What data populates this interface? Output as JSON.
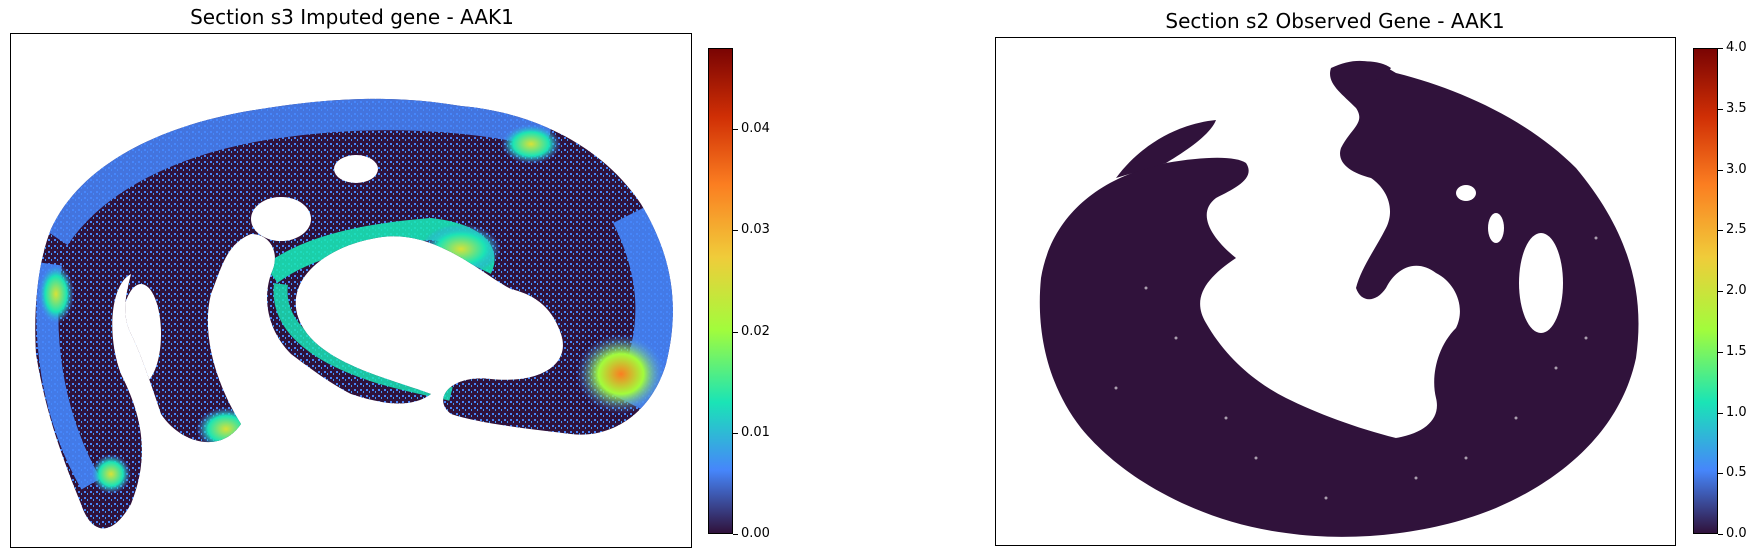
{
  "chart_data": [
    {
      "type": "heatmap",
      "title": "Section s3 Imputed gene - AAK1",
      "xlabel": "",
      "ylabel": "",
      "grid": false,
      "axes_ticks": false,
      "colormap": "turbo",
      "colorbar": {
        "vmin": 0.0,
        "vmax": 0.048,
        "ticks": [
          0.0,
          0.01,
          0.02,
          0.03,
          0.04
        ],
        "tick_labels": [
          "0.00",
          "0.01",
          "0.02",
          "0.03",
          "0.04"
        ]
      }
    },
    {
      "type": "heatmap",
      "title": "Section s2 Observed Gene - AAK1",
      "xlabel": "",
      "ylabel": "",
      "grid": false,
      "axes_ticks": false,
      "colormap": "turbo",
      "colorbar": {
        "vmin": 0.0,
        "vmax": 4.0,
        "ticks": [
          0.0,
          0.5,
          1.0,
          1.5,
          2.0,
          2.5,
          3.0,
          3.5,
          4.0
        ],
        "tick_labels": [
          "0.0",
          "0.5",
          "1.0",
          "1.5",
          "2.0",
          "2.5",
          "3.0",
          "3.5",
          "4.0"
        ]
      }
    }
  ],
  "colors": {
    "turbo_low": "#30123b",
    "turbo_blue": "#4686fb",
    "turbo_cyan": "#1ae4b6",
    "turbo_green": "#a2fc3c",
    "turbo_yellow": "#f0cc3a",
    "turbo_orange": "#fb7e21",
    "turbo_red": "#d02f05",
    "turbo_high": "#7a0403"
  }
}
